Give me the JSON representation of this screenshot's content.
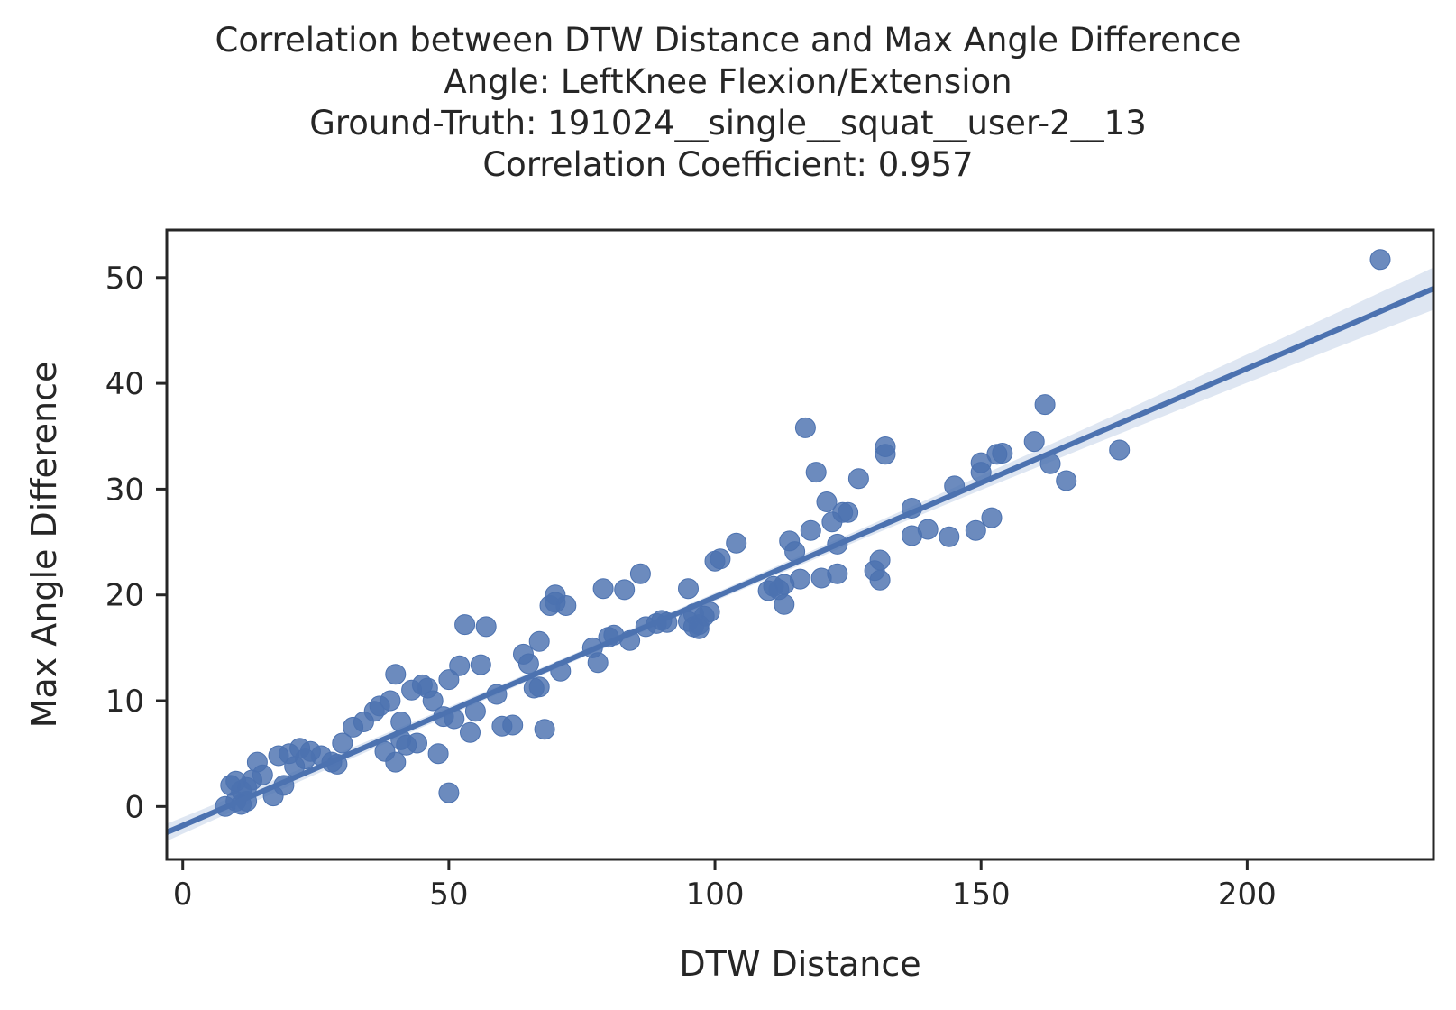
{
  "chart_data": {
    "type": "scatter",
    "title_lines": [
      "Correlation between DTW Distance and Max Angle Difference",
      "Angle: LeftKnee Flexion/Extension",
      "Ground-Truth: 191024__single__squat__user-2__13",
      "Correlation Coefficient: 0.957"
    ],
    "xlabel": "DTW Distance",
    "ylabel": "Max Angle Difference",
    "xlim": [
      -3,
      235
    ],
    "ylim": [
      -5,
      54.5
    ],
    "xticks": [
      0,
      50,
      100,
      150,
      200
    ],
    "yticks": [
      0,
      10,
      20,
      30,
      40,
      50
    ],
    "grid": false,
    "colors": {
      "points": "#4c72b0",
      "line": "#4c72b0",
      "band": "#c8d5ea",
      "axis": "#262626"
    },
    "regression": {
      "slope": 0.216,
      "intercept": -1.8,
      "ci_halfwidth_at_ends": 2.0
    },
    "x": [
      8,
      9,
      10,
      10,
      11,
      11,
      12,
      12,
      13,
      14,
      15,
      17,
      18,
      19,
      20,
      21,
      22,
      23,
      24,
      26,
      28,
      29,
      30,
      32,
      34,
      36,
      37,
      38,
      39,
      40,
      40,
      41,
      41,
      42,
      43,
      44,
      45,
      46,
      47,
      48,
      49,
      50,
      50,
      51,
      52,
      53,
      54,
      55,
      56,
      57,
      59,
      60,
      62,
      64,
      65,
      66,
      67,
      67,
      68,
      69,
      70,
      70,
      71,
      72,
      77,
      78,
      79,
      80,
      81,
      83,
      84,
      86,
      87,
      89,
      90,
      91,
      95,
      95,
      96,
      96,
      97,
      97,
      98,
      99,
      100,
      101,
      104,
      110,
      111,
      112,
      113,
      113,
      114,
      115,
      116,
      117,
      118,
      119,
      120,
      121,
      122,
      123,
      123,
      124,
      125,
      127,
      130,
      131,
      131,
      132,
      132,
      137,
      137,
      140,
      144,
      145,
      149,
      150,
      150,
      152,
      153,
      154,
      160,
      162,
      163,
      166,
      176,
      225
    ],
    "y": [
      0,
      2,
      0.5,
      2.4,
      1.5,
      0.2,
      1.8,
      0.5,
      2.5,
      4.2,
      3,
      1,
      4.8,
      2,
      5,
      3.8,
      5.5,
      4.5,
      5.2,
      4.8,
      4.2,
      4,
      6,
      7.5,
      8,
      9,
      9.5,
      5.2,
      10,
      12.5,
      4.2,
      8,
      6.3,
      5.8,
      11,
      6,
      11.5,
      11.2,
      10,
      5,
      8.5,
      1.3,
      12,
      8.3,
      13.3,
      17.2,
      7,
      9,
      13.4,
      17,
      10.6,
      7.6,
      7.7,
      14.4,
      13.5,
      11.2,
      11.3,
      15.6,
      7.3,
      19,
      20,
      19.3,
      12.8,
      19,
      15,
      13.6,
      20.6,
      16,
      16.2,
      20.5,
      15.7,
      22,
      17,
      17.3,
      17.6,
      17.4,
      20.6,
      17.5,
      17,
      18.2,
      17.2,
      16.8,
      18,
      18.4,
      23.2,
      23.4,
      24.9,
      20.4,
      20.8,
      20.5,
      19.1,
      21,
      25.1,
      24.1,
      21.5,
      35.8,
      26.1,
      31.6,
      21.6,
      28.8,
      26.9,
      24.8,
      22,
      27.8,
      27.8,
      31,
      22.3,
      23.3,
      21.4,
      33.3,
      34,
      25.6,
      28.2,
      26.2,
      25.5,
      30.3,
      26.1,
      32.5,
      31.6,
      27.3,
      33.3,
      33.4,
      34.5,
      38,
      32.4,
      30.8,
      33.7,
      51.7
    ]
  }
}
